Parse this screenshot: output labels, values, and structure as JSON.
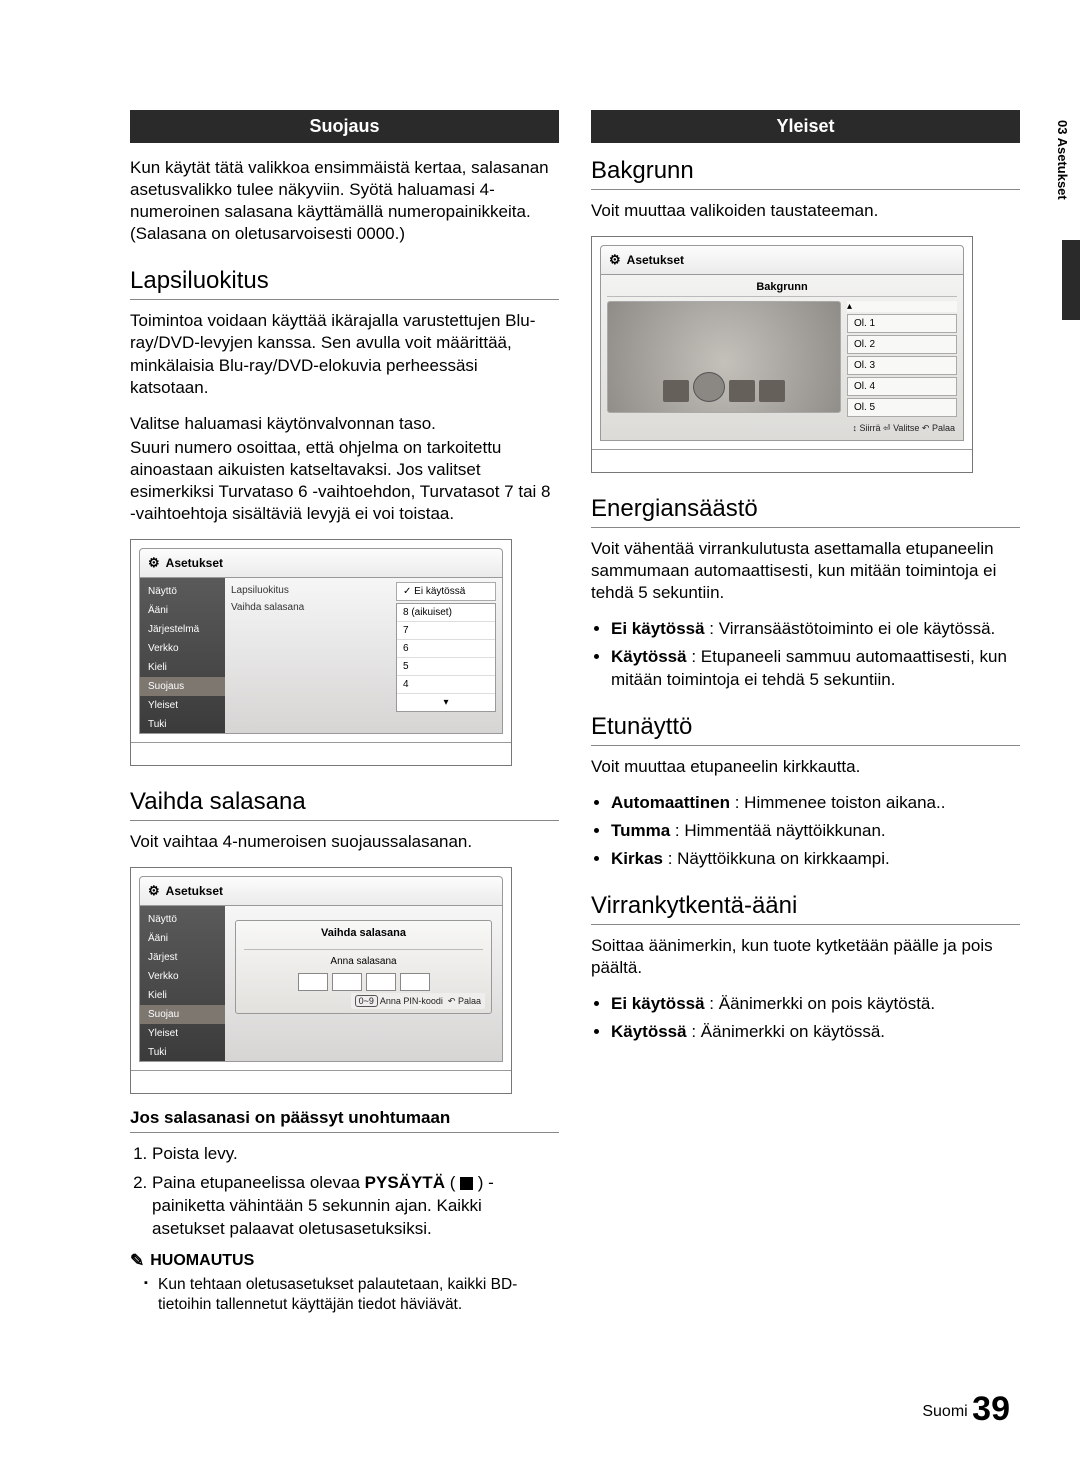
{
  "sideTab": "03  Asetukset",
  "left": {
    "header": "Suojaus",
    "intro": "Kun käytät tätä valikkoa ensimmäistä kertaa, salasanan asetusvalikko tulee näkyviin. Syötä haluamasi 4-numeroinen salasana käyttämällä numeropainikkeita. (Salasana on oletusarvoisesti 0000.)",
    "s1_title": "Lapsiluokitus",
    "s1_p1": "Toimintoa voidaan käyttää ikärajalla varustettujen Blu-ray/DVD-levyjen kanssa. Sen avulla voit määrittää, minkälaisia Blu-ray/DVD-elokuvia perheessäsi katsotaan.",
    "s1_p2": "Valitse haluamasi käytönvalvonnan taso.",
    "s1_p3": "Suuri numero osoittaa, että ohjelma on tarkoitettu ainoastaan aikuisten katseltavaksi. Jos valitset esimerkiksi Turvataso 6 -vaihtoehdon, Turvatasot 7 tai 8 -vaihtoehtoja sisältäviä levyjä ei voi toistaa.",
    "mockA": {
      "title": "Asetukset",
      "nav": [
        "Näyttö",
        "Ääni",
        "Järjestelmä",
        "Verkko",
        "Kieli",
        "Suojaus",
        "Yleiset",
        "Tuki"
      ],
      "selIndex": 5,
      "mid": [
        "Lapsiluokitus",
        "Vaihda salasana"
      ],
      "opts": [
        "✓ Ei käytössä",
        "8 (aikuiset)",
        "7",
        "6",
        "5",
        "4",
        "▾"
      ]
    },
    "s2_title": "Vaihda salasana",
    "s2_p": "Voit vaihtaa 4-numeroisen suojaussalasanan.",
    "mockB": {
      "title": "Asetukset",
      "nav": [
        "Näyttö",
        "Ääni",
        "Järjest",
        "Verkko",
        "Kieli",
        "Suojau",
        "Yleiset",
        "Tuki"
      ],
      "panel": "Vaihda salasana",
      "prompt": "Anna salasana",
      "hintBtn": "0~9",
      "hint1": "Anna PIN-koodi",
      "hint2": "Palaa"
    },
    "sub_title": "Jos salasanasi on päässyt unohtumaan",
    "step1": "Poista levy.",
    "step2a": "Paina etupaneelissa olevaa ",
    "step2b": "PYSÄYTÄ",
    "step2c": " ( ",
    "step2d": " ) - painiketta vähintään 5 sekunnin ajan. Kaikki asetukset palaavat oletusasetuksiksi.",
    "note_head": "HUOMAUTUS",
    "note": "Kun tehtaan oletusasetukset palautetaan, kaikki BD-tietoihin tallennetut käyttäjän tiedot häviävät."
  },
  "right": {
    "header": "Yleiset",
    "s1_title": "Bakgrunn",
    "s1_p": "Voit muuttaa valikoiden taustateeman.",
    "mockC": {
      "title": "Asetukset",
      "inner": "Bakgrunn",
      "list": [
        "Ol. 1",
        "Ol. 2",
        "Ol. 3",
        "Ol. 4",
        "Ol. 5"
      ],
      "hint": "↕ Siirrä   ⏎ Valitse   ↶ Palaa"
    },
    "s2_title": "Energiansäästö",
    "s2_p": "Voit vähentää virrankulutusta asettamalla etupaneelin sammumaan automaattisesti, kun mitään toimintoja ei tehdä 5 sekuntiin.",
    "s2_b1a": "Ei käytössä",
    "s2_b1b": " : Virransäästötoiminto ei ole käytössä.",
    "s2_b2a": "Käytössä",
    "s2_b2b": " : Etupaneeli sammuu automaattisesti, kun mitään toimintoja ei tehdä 5 sekuntiin.",
    "s3_title": "Etunäyttö",
    "s3_p": "Voit muuttaa etupaneelin kirkkautta.",
    "s3_b1a": "Automaattinen",
    "s3_b1b": " : Himmenee toiston aikana..",
    "s3_b2a": "Tumma",
    "s3_b2b": " : Himmentää näyttöikkunan.",
    "s3_b3a": "Kirkas",
    "s3_b3b": " : Näyttöikkuna on kirkkaampi.",
    "s4_title": "Virrankytkentä-ääni",
    "s4_p": "Soittaa äänimerkin, kun tuote kytketään päälle ja pois päältä.",
    "s4_b1a": "Ei käytössä",
    "s4_b1b": " : Äänimerkki on pois käytöstä.",
    "s4_b2a": "Käytössä",
    "s4_b2b": " : Äänimerkki on käytössä."
  },
  "footer": {
    "lang": "Suomi",
    "num": "39"
  }
}
